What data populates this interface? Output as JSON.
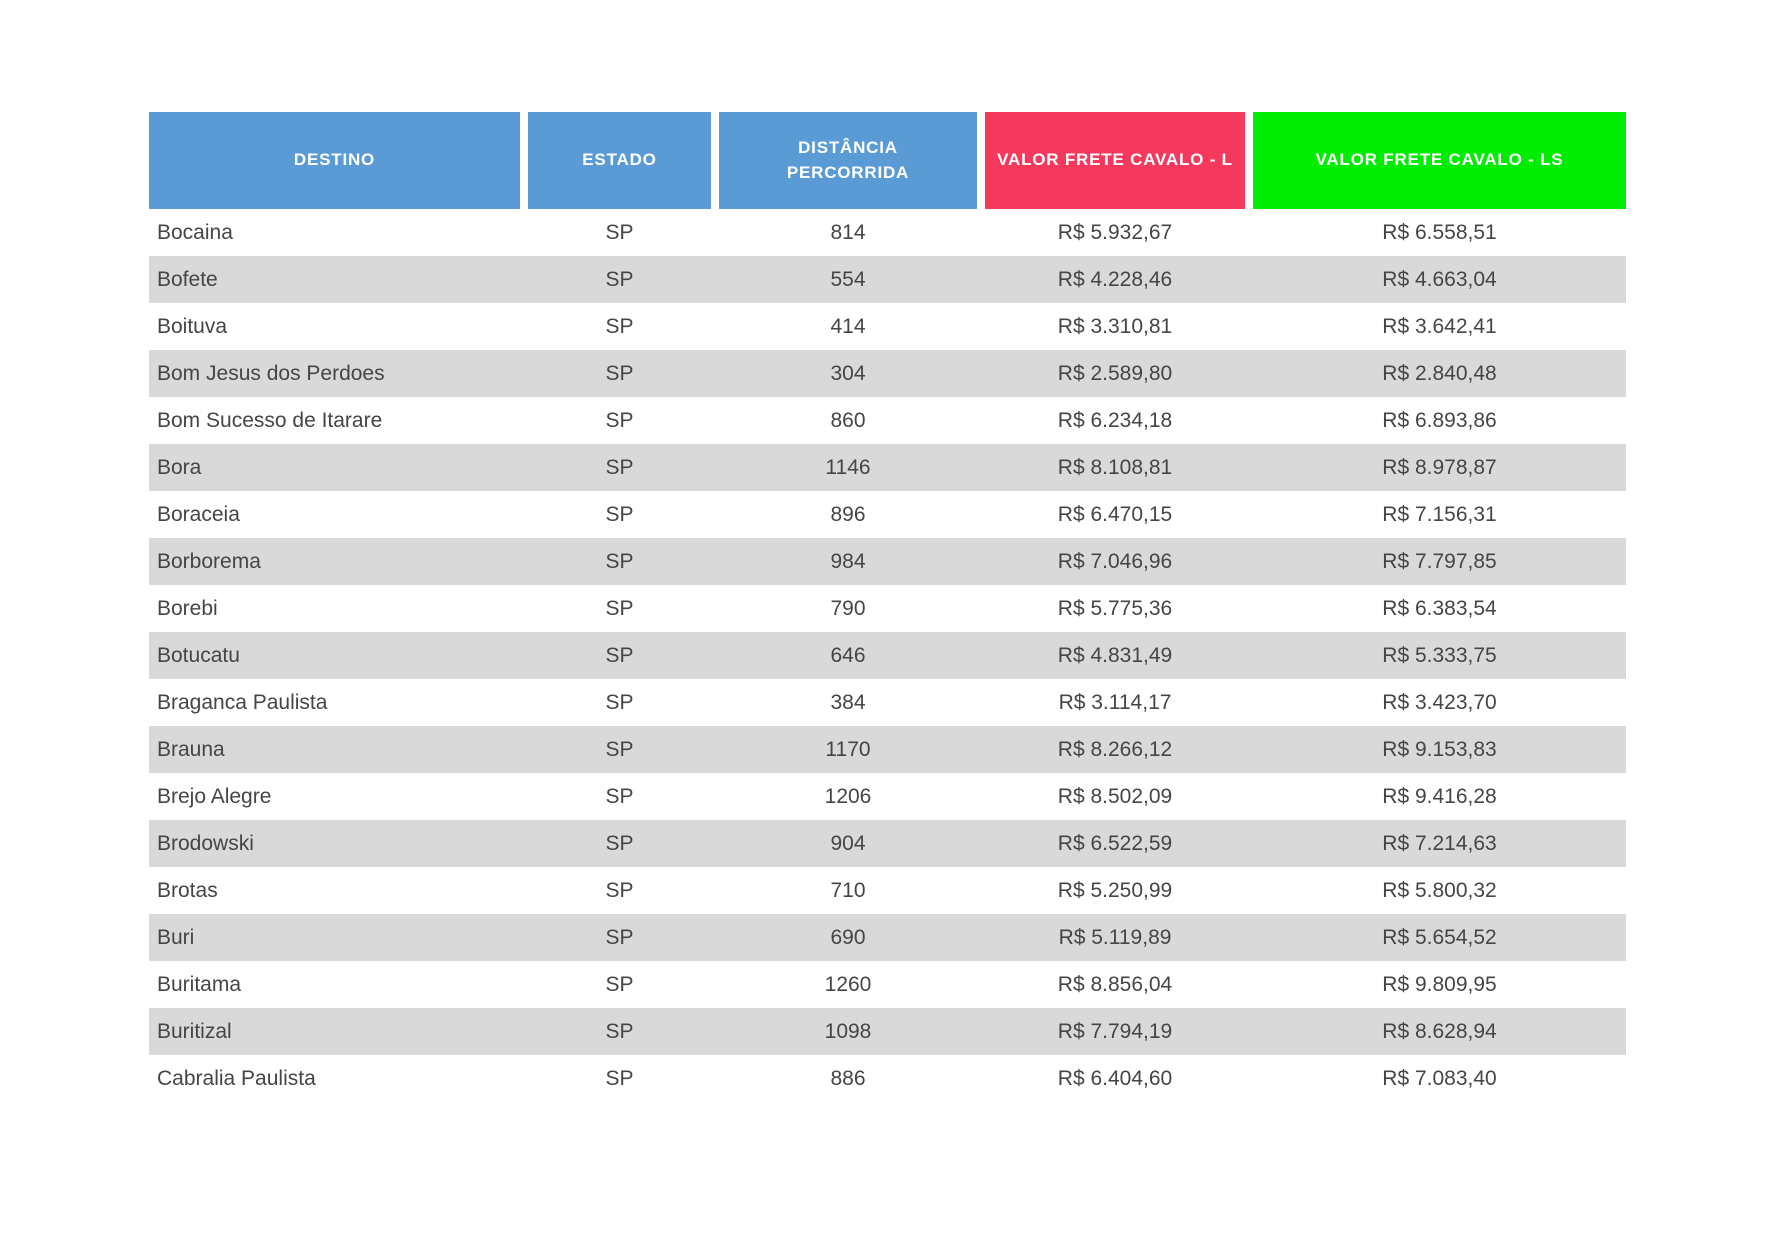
{
  "page": {
    "background": "#ffffff"
  },
  "table": {
    "columns": [
      {
        "key": "destino",
        "label": "DESTINO",
        "header_color": "#5B9BD5"
      },
      {
        "key": "estado",
        "label": "ESTADO",
        "header_color": "#5B9BD5"
      },
      {
        "key": "distancia",
        "label": "DISTÂNCIA PERCORRIDA",
        "header_color": "#5B9BD5"
      },
      {
        "key": "frete_l",
        "label": "VALOR FRETE CAVALO - L",
        "header_color": "#F4395C"
      },
      {
        "key": "frete_ls",
        "label": "VALOR FRETE CAVALO - LS",
        "header_color": "#00EC00"
      }
    ],
    "stripe_color": "#D9D9D9",
    "text_color": "#454545",
    "rows": [
      {
        "destino": "Bocaina",
        "estado": "SP",
        "distancia": "814",
        "frete_l": "R$ 5.932,67",
        "frete_ls": "R$ 6.558,51"
      },
      {
        "destino": "Bofete",
        "estado": "SP",
        "distancia": "554",
        "frete_l": "R$ 4.228,46",
        "frete_ls": "R$ 4.663,04"
      },
      {
        "destino": "Boituva",
        "estado": "SP",
        "distancia": "414",
        "frete_l": "R$ 3.310,81",
        "frete_ls": "R$ 3.642,41"
      },
      {
        "destino": "Bom Jesus dos Perdoes",
        "estado": "SP",
        "distancia": "304",
        "frete_l": "R$ 2.589,80",
        "frete_ls": "R$ 2.840,48"
      },
      {
        "destino": "Bom Sucesso de Itarare",
        "estado": "SP",
        "distancia": "860",
        "frete_l": "R$ 6.234,18",
        "frete_ls": "R$ 6.893,86"
      },
      {
        "destino": "Bora",
        "estado": "SP",
        "distancia": "1146",
        "frete_l": "R$ 8.108,81",
        "frete_ls": "R$ 8.978,87"
      },
      {
        "destino": "Boraceia",
        "estado": "SP",
        "distancia": "896",
        "frete_l": "R$ 6.470,15",
        "frete_ls": "R$ 7.156,31"
      },
      {
        "destino": "Borborema",
        "estado": "SP",
        "distancia": "984",
        "frete_l": "R$ 7.046,96",
        "frete_ls": "R$ 7.797,85"
      },
      {
        "destino": "Borebi",
        "estado": "SP",
        "distancia": "790",
        "frete_l": "R$ 5.775,36",
        "frete_ls": "R$ 6.383,54"
      },
      {
        "destino": "Botucatu",
        "estado": "SP",
        "distancia": "646",
        "frete_l": "R$ 4.831,49",
        "frete_ls": "R$ 5.333,75"
      },
      {
        "destino": "Braganca Paulista",
        "estado": "SP",
        "distancia": "384",
        "frete_l": "R$ 3.114,17",
        "frete_ls": "R$ 3.423,70"
      },
      {
        "destino": "Brauna",
        "estado": "SP",
        "distancia": "1170",
        "frete_l": "R$ 8.266,12",
        "frete_ls": "R$ 9.153,83"
      },
      {
        "destino": "Brejo Alegre",
        "estado": "SP",
        "distancia": "1206",
        "frete_l": "R$ 8.502,09",
        "frete_ls": "R$ 9.416,28"
      },
      {
        "destino": "Brodowski",
        "estado": "SP",
        "distancia": "904",
        "frete_l": "R$ 6.522,59",
        "frete_ls": "R$ 7.214,63"
      },
      {
        "destino": "Brotas",
        "estado": "SP",
        "distancia": "710",
        "frete_l": "R$ 5.250,99",
        "frete_ls": "R$ 5.800,32"
      },
      {
        "destino": "Buri",
        "estado": "SP",
        "distancia": "690",
        "frete_l": "R$ 5.119,89",
        "frete_ls": "R$ 5.654,52"
      },
      {
        "destino": "Buritama",
        "estado": "SP",
        "distancia": "1260",
        "frete_l": "R$ 8.856,04",
        "frete_ls": "R$ 9.809,95"
      },
      {
        "destino": "Buritizal",
        "estado": "SP",
        "distancia": "1098",
        "frete_l": "R$ 7.794,19",
        "frete_ls": "R$ 8.628,94"
      },
      {
        "destino": "Cabralia Paulista",
        "estado": "SP",
        "distancia": "886",
        "frete_l": "R$ 6.404,60",
        "frete_ls": "R$ 7.083,40"
      }
    ]
  }
}
